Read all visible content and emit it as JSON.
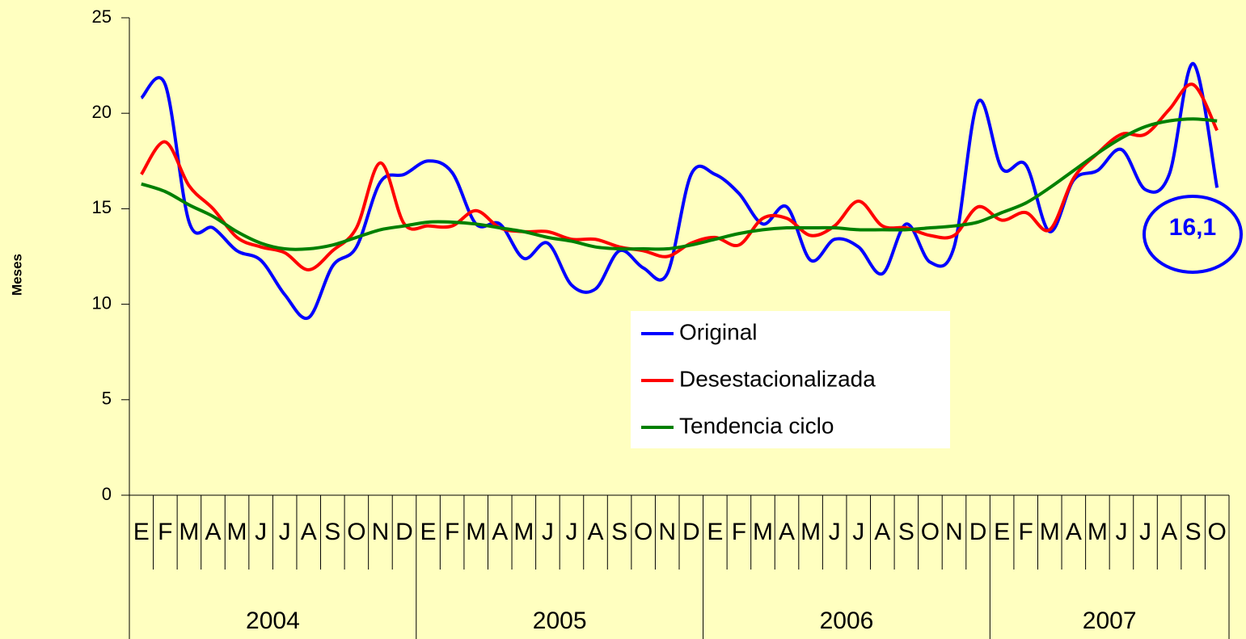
{
  "chart_data": {
    "type": "line",
    "y_label": "Meses",
    "categories": [
      "E",
      "F",
      "M",
      "A",
      "M",
      "J",
      "J",
      "A",
      "S",
      "O",
      "N",
      "D",
      "E",
      "F",
      "M",
      "A",
      "M",
      "J",
      "J",
      "A",
      "S",
      "O",
      "N",
      "D",
      "E",
      "F",
      "M",
      "A",
      "M",
      "J",
      "J",
      "A",
      "S",
      "O",
      "N",
      "D",
      "E",
      "F",
      "M",
      "A",
      "M",
      "J",
      "J",
      "A",
      "S",
      "O"
    ],
    "year_groups": [
      {
        "label": "2004",
        "span": 12
      },
      {
        "label": "2005",
        "span": 12
      },
      {
        "label": "2006",
        "span": 12
      },
      {
        "label": "2007",
        "span": 10
      }
    ],
    "series": [
      {
        "name": "Original",
        "color": "#0000ff",
        "values": [
          20.8,
          21.5,
          14.3,
          14.0,
          12.8,
          12.3,
          10.5,
          9.3,
          12.0,
          13.0,
          16.4,
          16.8,
          17.5,
          16.9,
          14.2,
          14.2,
          12.4,
          13.2,
          11.0,
          10.8,
          12.8,
          11.9,
          11.6,
          16.8,
          16.8,
          15.8,
          14.2,
          15.1,
          12.3,
          13.4,
          13.0,
          11.6,
          14.2,
          12.2,
          13.0,
          20.6,
          17.1,
          17.3,
          13.8,
          16.5,
          17.0,
          18.1,
          16.0,
          16.8,
          22.6,
          16.1
        ]
      },
      {
        "name": "Desestacionalizada",
        "color": "#ff0000",
        "values": [
          16.8,
          18.5,
          16.2,
          15.0,
          13.5,
          13.0,
          12.7,
          11.8,
          12.8,
          14.0,
          17.4,
          14.2,
          14.1,
          14.1,
          14.9,
          14.0,
          13.8,
          13.8,
          13.4,
          13.4,
          13.0,
          12.8,
          12.5,
          13.2,
          13.5,
          13.1,
          14.5,
          14.5,
          13.6,
          14.1,
          15.4,
          14.1,
          14.0,
          13.6,
          13.6,
          15.1,
          14.4,
          14.8,
          13.9,
          16.6,
          17.9,
          18.9,
          18.9,
          20.2,
          21.5,
          19.1
        ]
      },
      {
        "name": "Tendencia ciclo",
        "color": "#008000",
        "values": [
          16.3,
          15.9,
          15.2,
          14.6,
          13.8,
          13.2,
          12.9,
          12.9,
          13.1,
          13.5,
          13.9,
          14.1,
          14.3,
          14.3,
          14.2,
          14.0,
          13.8,
          13.5,
          13.3,
          13.0,
          12.9,
          12.9,
          12.9,
          13.1,
          13.4,
          13.7,
          13.9,
          14.0,
          14.0,
          14.0,
          13.9,
          13.9,
          13.9,
          14.0,
          14.1,
          14.3,
          14.8,
          15.3,
          16.1,
          17.0,
          17.9,
          18.7,
          19.3,
          19.6,
          19.7,
          19.6
        ]
      }
    ],
    "annotations": [
      {
        "text": "16,1",
        "color": "#0000ff"
      }
    ],
    "ylim": [
      0,
      25
    ],
    "yticks": [
      0,
      5,
      10,
      15,
      20,
      25
    ]
  }
}
